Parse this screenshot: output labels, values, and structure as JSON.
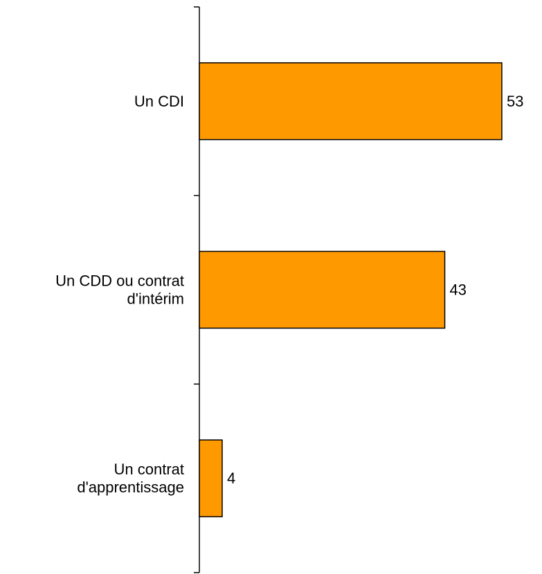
{
  "chart_data": {
    "type": "bar",
    "orientation": "horizontal",
    "categories": [
      [
        "Un CDI"
      ],
      [
        "Un CDD ou contrat",
        "d'intérim"
      ],
      [
        "Un contrat",
        "d'apprentissage"
      ]
    ],
    "values": [
      53,
      43,
      4
    ],
    "data_labels": [
      "53",
      "43",
      "4"
    ],
    "xlim": [
      0,
      53
    ],
    "grid": false,
    "legend": "none",
    "bar_color": "#FF9900",
    "bar_edge_color": "#000000"
  }
}
